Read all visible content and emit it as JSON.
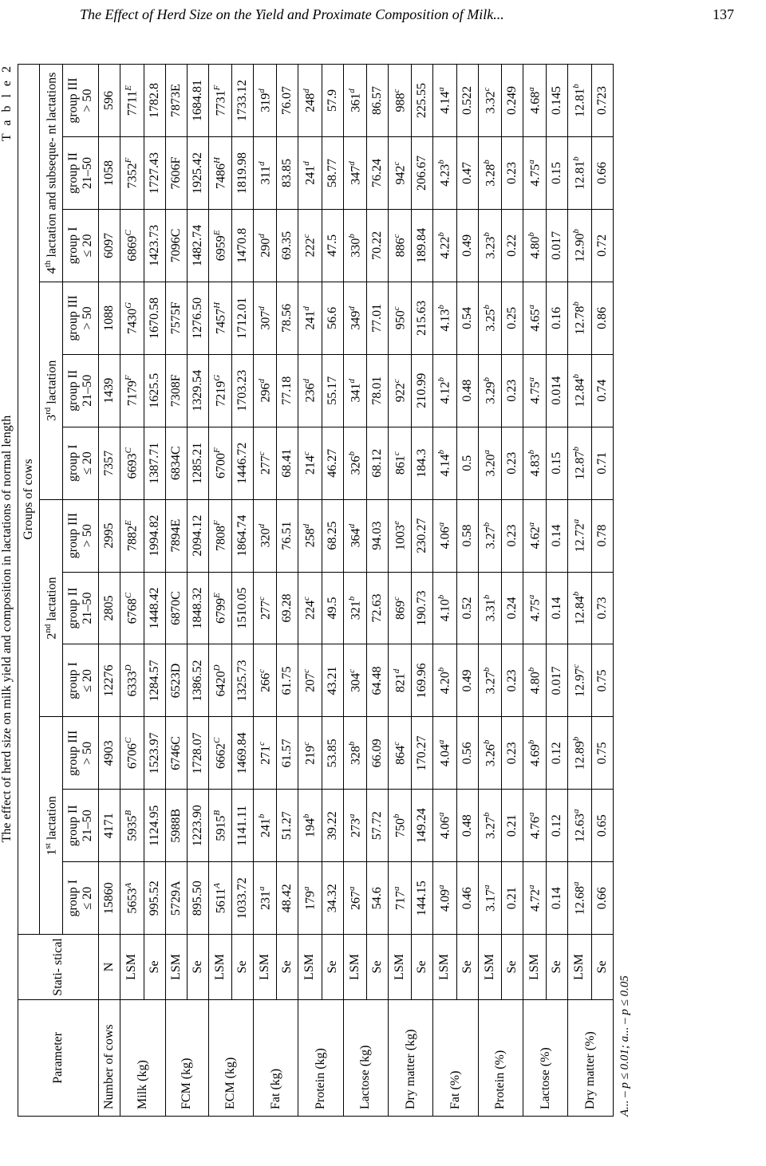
{
  "header": {
    "running_title": "The Effect of Herd Size on the Yield and Proximate Composition of Milk...",
    "page_number": "137"
  },
  "table": {
    "label": "T a b l e 2",
    "caption": "The effect of herd size on milk yield and composition in lactations of normal length",
    "header": {
      "param": "Parameter",
      "stat": "Stati-\nstical\nmeasure",
      "groups_of_cows": "Groups of cows",
      "lactations": [
        {
          "html": "1<span class='sub'>st</span> lactation",
          "key": "l1"
        },
        {
          "html": "2<span class='sub'>nd</span> lactation",
          "key": "l2"
        },
        {
          "html": "3<span class='sub'>rd</span> lactation",
          "key": "l3"
        },
        {
          "html": "4<span class='sub'>th</span> lactation and subseque-\nnt lactations",
          "key": "l4"
        }
      ],
      "groups": [
        {
          "line1": "group I",
          "line2": "≤ 20"
        },
        {
          "line1": "group II",
          "line2": "21–50"
        },
        {
          "line1": "group III",
          "line2": "> 50"
        }
      ]
    },
    "rows": [
      {
        "param": "Number of cows",
        "stat": "N",
        "vals": [
          "15860",
          "4171",
          "4903",
          "12276",
          "2805",
          "2995",
          "7357",
          "1439",
          "1088",
          "6097",
          "1058",
          "596"
        ]
      },
      {
        "param": "Milk (kg)",
        "stat": "LSM",
        "vals": [
          "5653<sup class='sup'>A</sup>",
          "5935<sup class='sup'>B</sup>",
          "6706<sup class='sup'>C</sup>",
          "6333<sup class='sup'>D</sup>",
          "6768<sup class='sup'>C</sup>",
          "7882<sup class='sup'>E</sup>",
          "6693<sup class='sup'>C</sup>",
          "7179<sup class='sup'>F</sup>",
          "7430<sup class='sup'>G</sup>",
          "6869<sup class='sup'>C</sup>",
          "7352<sup class='sup'>F</sup>",
          "7711<sup class='sup'>E</sup>"
        ]
      },
      {
        "param": "",
        "stat": "Se",
        "vals": [
          "995.52",
          "1124.95",
          "1523.97",
          "1284.57",
          "1448.42",
          "1994.82",
          "1387.71",
          "1625.5",
          "1670.58",
          "1423.73",
          "1727.43",
          "1782.8"
        ]
      },
      {
        "param": "FCM (kg)",
        "stat": "LSM",
        "vals": [
          "5729A",
          "5988B",
          "6746C",
          "6523D",
          "6870C",
          "7894E",
          "6834C",
          "7308F",
          "7575F",
          "7096C",
          "7606F",
          "7873E"
        ]
      },
      {
        "param": "",
        "stat": "Se",
        "vals": [
          "895.50",
          "1223.90",
          "1728.07",
          "1386.52",
          "1848.32",
          "2094.12",
          "1285.21",
          "1329.54",
          "1276.50",
          "1482.74",
          "1925.42",
          "1684.81"
        ]
      },
      {
        "param": "ECM (kg)",
        "stat": "LSM",
        "vals": [
          "5611<sup class='sup'>A</sup>",
          "5915<sup class='sup'>B</sup>",
          "6662<sup class='sup'>C</sup>",
          "6420<sup class='sup'>D</sup>",
          "6799<sup class='sup'>E</sup>",
          "7808<sup class='sup'>F</sup>",
          "6700<sup class='sup'>F</sup>",
          "7219<sup class='sup'>G</sup>",
          "7457<sup class='sup'>H</sup>",
          "6959<sup class='sup'>E</sup>",
          "7486<sup class='sup'>H</sup>",
          "7731<sup class='sup'>F</sup>"
        ]
      },
      {
        "param": "",
        "stat": "Se",
        "vals": [
          "1033.72",
          "1141.11",
          "1469.84",
          "1325.73",
          "1510.05",
          "1864.74",
          "1446.72",
          "1703.23",
          "1712.01",
          "1470.8",
          "1819.98",
          "1733.12"
        ]
      },
      {
        "param": "Fat (kg)",
        "stat": "LSM",
        "vals": [
          "231<sup class='sup'>a</sup>",
          "241<sup class='sup'>b</sup>",
          "271<sup class='sup'>c</sup>",
          "266<sup class='sup'>c</sup>",
          "277<sup class='sup'>c</sup>",
          "320<sup class='sup'>d</sup>",
          "277<sup class='sup'>c</sup>",
          "296<sup class='sup'>d</sup>",
          "307<sup class='sup'>d</sup>",
          "290<sup class='sup'>d</sup>",
          "311<sup class='sup'>d</sup>",
          "319<sup class='sup'>d</sup>"
        ]
      },
      {
        "param": "",
        "stat": "Se",
        "vals": [
          "48.42",
          "51.27",
          "61.57",
          "61.75",
          "69.28",
          "76.51",
          "68.41",
          "77.18",
          "78.56",
          "69.35",
          "83.85",
          "76.07"
        ]
      },
      {
        "param": "Protein (kg)",
        "stat": "LSM",
        "vals": [
          "179<sup class='sup'>a</sup>",
          "194<sup class='sup'>b</sup>",
          "219<sup class='sup'>c</sup>",
          "207<sup class='sup'>c</sup>",
          "224<sup class='sup'>c</sup>",
          "258<sup class='sup'>d</sup>",
          "214<sup class='sup'>c</sup>",
          "236<sup class='sup'>d</sup>",
          "241<sup class='sup'>d</sup>",
          "222<sup class='sup'>c</sup>",
          "241<sup class='sup'>d</sup>",
          "248<sup class='sup'>d</sup>"
        ]
      },
      {
        "param": "",
        "stat": "Se",
        "vals": [
          "34.32",
          "39.22",
          "53.85",
          "43.21",
          "49.5",
          "68.25",
          "46.27",
          "55.17",
          "56.6",
          "47.5",
          "58.77",
          "57.9"
        ]
      },
      {
        "param": "Lactose (kg)",
        "stat": "LSM",
        "vals": [
          "267<sup class='sup'>a</sup>",
          "273<sup class='sup'>a</sup>",
          "328<sup class='sup'>b</sup>",
          "304<sup class='sup'>c</sup>",
          "321<sup class='sup'>b</sup>",
          "364<sup class='sup'>d</sup>",
          "326<sup class='sup'>b</sup>",
          "341<sup class='sup'>d</sup>",
          "349<sup class='sup'>d</sup>",
          "330<sup class='sup'>b</sup>",
          "347<sup class='sup'>d</sup>",
          "361<sup class='sup'>d</sup>"
        ]
      },
      {
        "param": "",
        "stat": "Se",
        "vals": [
          "54.6",
          "57.72",
          "66.09",
          "64.48",
          "72.63",
          "94.03",
          "68.12",
          "78.01",
          "77.01",
          "70.22",
          "76.24",
          "86.57"
        ]
      },
      {
        "param": "Dry matter (kg)",
        "stat": "LSM",
        "vals": [
          "717<sup class='sup'>a</sup>",
          "750<sup class='sup'>b</sup>",
          "864<sup class='sup'>c</sup>",
          "821<sup class='sup'>d</sup>",
          "869<sup class='sup'>c</sup>",
          "1003<sup class='sup'>e</sup>",
          "861<sup class='sup'>c</sup>",
          "922<sup class='sup'>c</sup>",
          "950<sup class='sup'>c</sup>",
          "886<sup class='sup'>c</sup>",
          "942<sup class='sup'>c</sup>",
          "988<sup class='sup'>c</sup>"
        ]
      },
      {
        "param": "",
        "stat": "Se",
        "vals": [
          "144.15",
          "149.24",
          "170.27",
          "169.96",
          "190.73",
          "230.27",
          "184.3",
          "210.99",
          "215.63",
          "189.84",
          "206.67",
          "225.55"
        ]
      },
      {
        "param": "Fat (%)",
        "stat": "LSM",
        "vals": [
          "4.09<sup class='sup'>a</sup>",
          "4.06<sup class='sup'>a</sup>",
          "4.04<sup class='sup'>a</sup>",
          "4.20<sup class='sup'>b</sup>",
          "4.10<sup class='sup'>b</sup>",
          "4.06<sup class='sup'>a</sup>",
          "4.14<sup class='sup'>b</sup>",
          "4.12<sup class='sup'>b</sup>",
          "4.13<sup class='sup'>b</sup>",
          "4.22<sup class='sup'>b</sup>",
          "4.23<sup class='sup'>b</sup>",
          "4.14<sup class='sup'>a</sup>"
        ]
      },
      {
        "param": "",
        "stat": "Se",
        "vals": [
          "0.46",
          "0.48",
          "0.56",
          "0.49",
          "0.52",
          "0.58",
          "0.5",
          "0.48",
          "0.54",
          "0.49",
          "0.47",
          "0.522"
        ]
      },
      {
        "param": "Protein (%)",
        "stat": "LSM",
        "vals": [
          "3.17<sup class='sup'>a</sup>",
          "3.27<sup class='sup'>b</sup>",
          "3.26<sup class='sup'>b</sup>",
          "3.27<sup class='sup'>b</sup>",
          "3.31<sup class='sup'>b</sup>",
          "3.27<sup class='sup'>b</sup>",
          "3.20<sup class='sup'>a</sup>",
          "3.29<sup class='sup'>b</sup>",
          "3.25<sup class='sup'>b</sup>",
          "3.23<sup class='sup'>b</sup>",
          "3.28<sup class='sup'>b</sup>",
          "3.32<sup class='sup'>c</sup>"
        ]
      },
      {
        "param": "",
        "stat": "Se",
        "vals": [
          "0.21",
          "0.21",
          "0.23",
          "0.23",
          "0.24",
          "0.23",
          "0.23",
          "0.23",
          "0.25",
          "0.22",
          "0.23",
          "0.249"
        ]
      },
      {
        "param": "Lactose (%)",
        "stat": "LSM",
        "vals": [
          "4.72<sup class='sup'>a</sup>",
          "4.76<sup class='sup'>a</sup>",
          "4.69<sup class='sup'>b</sup>",
          "4.80<sup class='sup'>b</sup>",
          "4.75<sup class='sup'>a</sup>",
          "4.62<sup class='sup'>a</sup>",
          "4.83<sup class='sup'>b</sup>",
          "4.75<sup class='sup'>a</sup>",
          "4.65<sup class='sup'>a</sup>",
          "4.80<sup class='sup'>b</sup>",
          "4.75<sup class='sup'>a</sup>",
          "4.68<sup class='sup'>a</sup>"
        ]
      },
      {
        "param": "",
        "stat": "Se",
        "vals": [
          "0.14",
          "0.12",
          "0.12",
          "0.017",
          "0.14",
          "0.14",
          "0.15",
          "0.014",
          "0.16",
          "0.017",
          "0.15",
          "0.145"
        ]
      },
      {
        "param": "Dry matter (%)",
        "stat": "LSM",
        "vals": [
          "12.68<sup class='sup'>a</sup>",
          "12.63<sup class='sup'>a</sup>",
          "12.89<sup class='sup'>b</sup>",
          "12.97<sup class='sup'>c</sup>",
          "12.84<sup class='sup'>b</sup>",
          "12.72<sup class='sup'>a</sup>",
          "12.87<sup class='sup'>b</sup>",
          "12.84<sup class='sup'>b</sup>",
          "12.78<sup class='sup'>b</sup>",
          "12.90<sup class='sup'>b</sup>",
          "12.81<sup class='sup'>b</sup>",
          "12.81<sup class='sup'>b</sup>"
        ]
      },
      {
        "param": "",
        "stat": "Se",
        "vals": [
          "0.66",
          "0.65",
          "0.75",
          "0.75",
          "0.73",
          "0.78",
          "0.71",
          "0.74",
          "0.86",
          "0.72",
          "0.66",
          "0.723"
        ]
      }
    ],
    "footnote_html": "A... – <span class='p'>p</span> ≤ 0.01; a... – <span class='p'>p</span> ≤ 0.05"
  }
}
